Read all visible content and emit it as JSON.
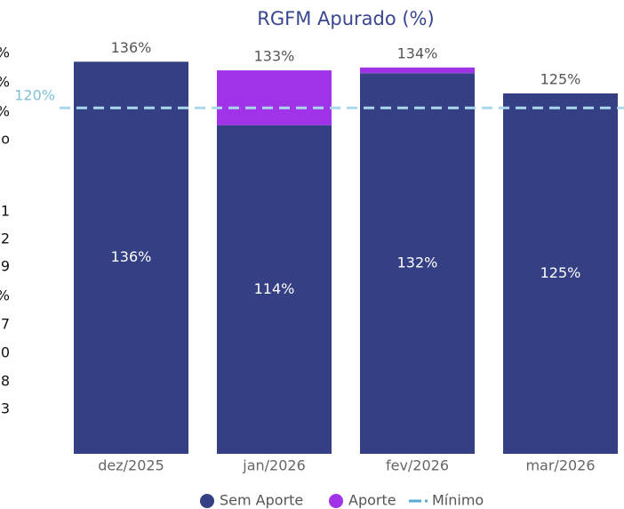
{
  "left_column": [
    "%",
    "%",
    "%",
    "o",
    "1",
    "2",
    "9",
    "%",
    "7",
    "0",
    "8",
    "3"
  ],
  "chart_data": {
    "type": "stacked_bar",
    "title": "RGFM Apurado (%)",
    "categories": [
      "dez/2025",
      "jan/2026",
      "fev/2026",
      "mar/2026"
    ],
    "series": [
      {
        "name": "Sem Aporte",
        "color": "#353f84",
        "values": [
          136,
          114,
          132,
          125
        ],
        "value_labels": [
          "136%",
          "114%",
          "132%",
          "125%"
        ]
      },
      {
        "name": "Aporte",
        "color": "#a033e8",
        "values": [
          0,
          19,
          2,
          0
        ]
      }
    ],
    "totals": {
      "values": [
        136,
        133,
        134,
        125
      ],
      "value_labels": [
        "136%",
        "133%",
        "134%",
        "125%"
      ]
    },
    "reference": {
      "name": "Mínimo",
      "value": 120,
      "label": "120%",
      "color": "#a8d8ea"
    },
    "ylim": [
      0,
      150
    ]
  }
}
